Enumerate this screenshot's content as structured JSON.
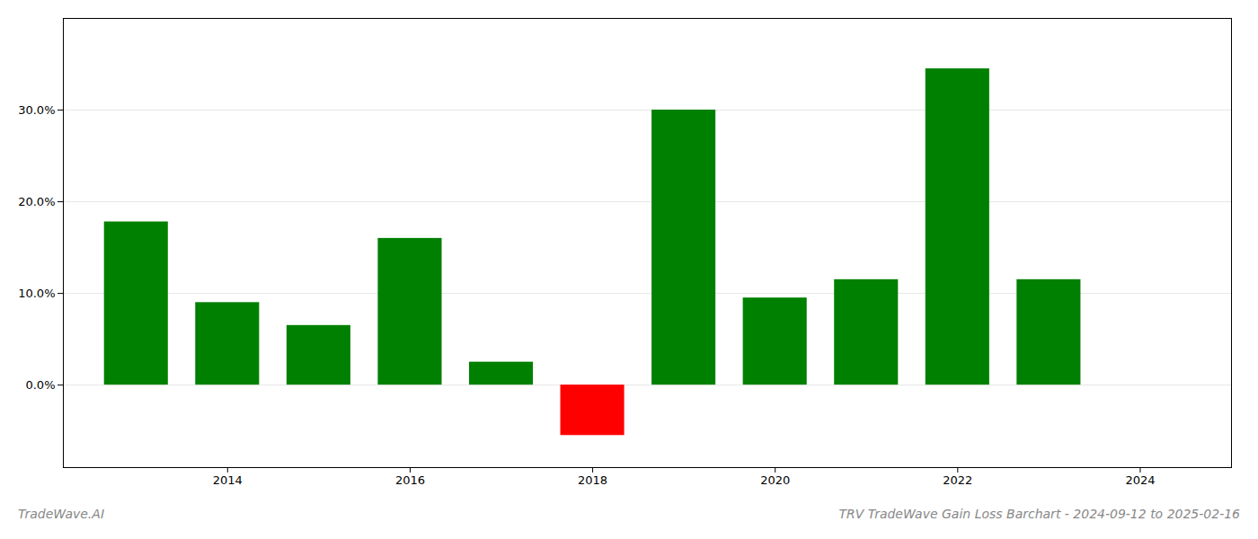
{
  "chart_data": {
    "type": "bar",
    "title": "TRV TradeWave Gain Loss Barchart - 2024-09-12 to 2025-02-16",
    "annotations": [
      "TradeWave.AI"
    ],
    "x": [
      2013,
      2014,
      2015,
      2016,
      2017,
      2018,
      2019,
      2020,
      2021,
      2022,
      2023
    ],
    "values": [
      17.8,
      9.0,
      6.5,
      16.0,
      2.5,
      -5.5,
      30.0,
      9.5,
      11.5,
      34.5,
      11.5
    ],
    "colors": [
      "#008000",
      "#008000",
      "#008000",
      "#008000",
      "#008000",
      "#ff0000",
      "#008000",
      "#008000",
      "#008000",
      "#008000",
      "#008000"
    ],
    "xlim": [
      2012.2,
      2025.0
    ],
    "xticks": [
      2014,
      2016,
      2018,
      2020,
      2022,
      2024
    ],
    "ylim": [
      -9.0,
      40.0
    ],
    "yticks": [
      {
        "value": 0.0,
        "label": "0.0%"
      },
      {
        "value": 10.0,
        "label": "10.0%"
      },
      {
        "value": 20.0,
        "label": "20.0%"
      },
      {
        "value": 30.0,
        "label": "30.0%"
      }
    ],
    "grid": true
  }
}
